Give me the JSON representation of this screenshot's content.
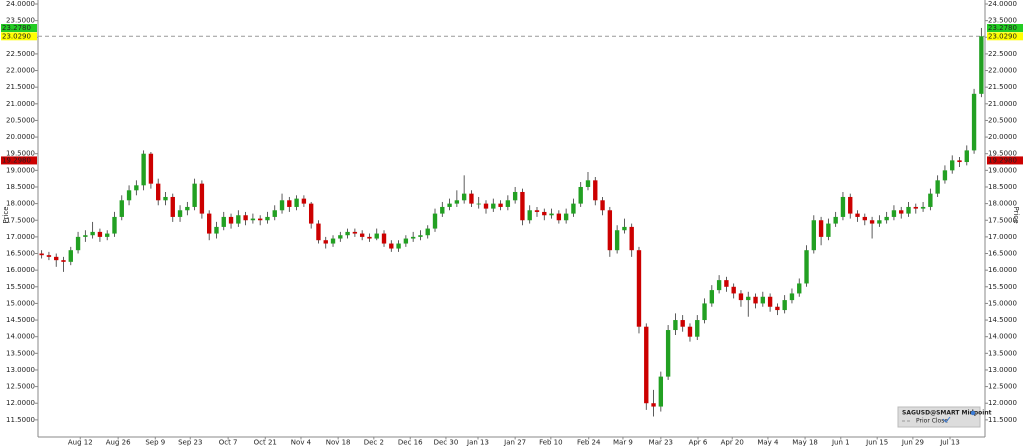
{
  "chart_data": {
    "type": "candlestick",
    "y_label": "Price",
    "name": "SAGUSD@SMART Midpoint",
    "up_color": "#22a022",
    "down_color": "#cc0000",
    "prior_close": {
      "name": "Prior Close",
      "value": 23.029,
      "color": "#999999"
    },
    "price_labels": [
      {
        "value": 23.278,
        "label": "23.2780",
        "color": "#22cc22"
      },
      {
        "value": 23.029,
        "label": "23.0290",
        "color": "#ffff00"
      },
      {
        "value": 19.298,
        "label": "19.2980",
        "color": "#cc0000"
      }
    ],
    "xlim": [
      0,
      130
    ],
    "xticks": [
      {
        "value": 5.8,
        "label": "Aug 12"
      },
      {
        "value": 11.0,
        "label": "Aug 26"
      },
      {
        "value": 16.1,
        "label": "Sep 9"
      },
      {
        "value": 20.9,
        "label": "Sep 23"
      },
      {
        "value": 26.1,
        "label": "Oct 7"
      },
      {
        "value": 31.2,
        "label": "Oct 21"
      },
      {
        "value": 36.1,
        "label": "Nov 4"
      },
      {
        "value": 41.2,
        "label": "Nov 18"
      },
      {
        "value": 46.1,
        "label": "Dec 2"
      },
      {
        "value": 51.1,
        "label": "Dec 16"
      },
      {
        "value": 56.0,
        "label": "Dec 30"
      },
      {
        "value": 60.4,
        "label": "Jan 13"
      },
      {
        "value": 65.5,
        "label": "Jan 27"
      },
      {
        "value": 70.4,
        "label": "Feb 10"
      },
      {
        "value": 75.6,
        "label": "Feb 24"
      },
      {
        "value": 80.3,
        "label": "Mar 9"
      },
      {
        "value": 85.5,
        "label": "Mar 23"
      },
      {
        "value": 90.6,
        "label": "Apr 6"
      },
      {
        "value": 95.3,
        "label": "Apr 20"
      },
      {
        "value": 100.2,
        "label": "May 4"
      },
      {
        "value": 105.3,
        "label": "May 18"
      },
      {
        "value": 110.2,
        "label": "Jun 1"
      },
      {
        "value": 115.2,
        "label": "Jun 15"
      },
      {
        "value": 120.1,
        "label": "Jun 29"
      },
      {
        "value": 125.2,
        "label": "Jul 13"
      }
    ],
    "ylim": [
      11.0,
      24.0
    ],
    "yticks": [
      {
        "value": 11.5,
        "label": "11.5000"
      },
      {
        "value": 12,
        "label": "12.0000"
      },
      {
        "value": 12.5,
        "label": "12.5000"
      },
      {
        "value": 13,
        "label": "13.0000"
      },
      {
        "value": 13.5,
        "label": "13.5000"
      },
      {
        "value": 14,
        "label": "14.0000"
      },
      {
        "value": 14.5,
        "label": "14.5000"
      },
      {
        "value": 15,
        "label": "15.0000"
      },
      {
        "value": 15.5,
        "label": "15.5000"
      },
      {
        "value": 16,
        "label": "16.0000"
      },
      {
        "value": 16.5,
        "label": "16.5000"
      },
      {
        "value": 17,
        "label": "17.0000"
      },
      {
        "value": 17.5,
        "label": "17.5000"
      },
      {
        "value": 18,
        "label": "18.0000"
      },
      {
        "value": 18.5,
        "label": "18.5000"
      },
      {
        "value": 19,
        "label": "19.0000"
      },
      {
        "value": 19.5,
        "label": "19.5000"
      },
      {
        "value": 20,
        "label": "20.0000"
      },
      {
        "value": 20.5,
        "label": "20.5000"
      },
      {
        "value": 21,
        "label": "21.0000"
      },
      {
        "value": 21.5,
        "label": "21.5000"
      },
      {
        "value": 22,
        "label": "22.0000"
      },
      {
        "value": 22.5,
        "label": "22.5000"
      },
      {
        "value": 23,
        "label": "23.0000"
      },
      {
        "value": 23.5,
        "label": "23.5000"
      },
      {
        "value": 24,
        "label": "24.0000"
      }
    ],
    "candles": [
      [
        16.5,
        16.6,
        16.35,
        16.45
      ],
      [
        16.45,
        16.55,
        16.3,
        16.4
      ],
      [
        16.4,
        16.5,
        16.1,
        16.3
      ],
      [
        16.3,
        16.4,
        15.95,
        16.25
      ],
      [
        16.25,
        16.7,
        16.15,
        16.6
      ],
      [
        16.6,
        17.15,
        16.5,
        17.0
      ],
      [
        17.0,
        17.2,
        16.85,
        17.05
      ],
      [
        17.05,
        17.45,
        16.95,
        17.15
      ],
      [
        17.15,
        17.25,
        16.85,
        17.0
      ],
      [
        17.0,
        17.2,
        16.9,
        17.1
      ],
      [
        17.1,
        17.75,
        17.0,
        17.6
      ],
      [
        17.6,
        18.25,
        17.5,
        18.1
      ],
      [
        18.1,
        18.55,
        17.95,
        18.4
      ],
      [
        18.4,
        18.7,
        18.25,
        18.55
      ],
      [
        18.55,
        19.6,
        18.4,
        19.5
      ],
      [
        19.5,
        19.55,
        18.45,
        18.6
      ],
      [
        18.6,
        18.75,
        17.95,
        18.1
      ],
      [
        18.1,
        18.35,
        17.95,
        18.2
      ],
      [
        18.2,
        18.3,
        17.45,
        17.6
      ],
      [
        17.6,
        17.95,
        17.45,
        17.8
      ],
      [
        17.8,
        18.05,
        17.65,
        17.9
      ],
      [
        17.9,
        18.75,
        17.8,
        18.6
      ],
      [
        18.6,
        18.7,
        17.55,
        17.7
      ],
      [
        17.7,
        17.8,
        16.9,
        17.1
      ],
      [
        17.1,
        17.45,
        16.95,
        17.3
      ],
      [
        17.3,
        17.75,
        17.2,
        17.6
      ],
      [
        17.6,
        17.7,
        17.25,
        17.4
      ],
      [
        17.4,
        17.8,
        17.3,
        17.65
      ],
      [
        17.65,
        17.75,
        17.35,
        17.5
      ],
      [
        17.5,
        17.7,
        17.4,
        17.55
      ],
      [
        17.55,
        17.65,
        17.35,
        17.5
      ],
      [
        17.5,
        17.75,
        17.4,
        17.6
      ],
      [
        17.6,
        17.95,
        17.5,
        17.8
      ],
      [
        17.8,
        18.3,
        17.7,
        18.1
      ],
      [
        18.1,
        18.2,
        17.75,
        17.9
      ],
      [
        17.9,
        18.25,
        17.8,
        18.15
      ],
      [
        18.15,
        18.25,
        17.9,
        18.0
      ],
      [
        18.0,
        18.05,
        17.25,
        17.4
      ],
      [
        17.4,
        17.5,
        16.8,
        16.9
      ],
      [
        16.9,
        17.0,
        16.65,
        16.8
      ],
      [
        16.8,
        17.05,
        16.7,
        16.95
      ],
      [
        16.95,
        17.15,
        16.85,
        17.05
      ],
      [
        17.05,
        17.25,
        16.95,
        17.15
      ],
      [
        17.15,
        17.25,
        17.0,
        17.1
      ],
      [
        17.1,
        17.2,
        16.9,
        17.0
      ],
      [
        17.0,
        17.1,
        16.85,
        16.95
      ],
      [
        16.95,
        17.25,
        16.9,
        17.1
      ],
      [
        17.1,
        17.2,
        16.7,
        16.8
      ],
      [
        16.8,
        16.9,
        16.55,
        16.65
      ],
      [
        16.65,
        16.9,
        16.55,
        16.8
      ],
      [
        16.8,
        17.05,
        16.7,
        16.95
      ],
      [
        16.95,
        17.15,
        16.85,
        17.0
      ],
      [
        17.0,
        17.2,
        16.9,
        17.05
      ],
      [
        17.05,
        17.35,
        16.95,
        17.25
      ],
      [
        17.25,
        17.85,
        17.15,
        17.7
      ],
      [
        17.7,
        18.05,
        17.6,
        17.9
      ],
      [
        17.9,
        18.15,
        17.8,
        18.0
      ],
      [
        18.0,
        18.4,
        17.9,
        18.1
      ],
      [
        18.1,
        18.85,
        18.0,
        18.3
      ],
      [
        18.3,
        18.4,
        17.9,
        18.0
      ],
      [
        18.0,
        18.2,
        17.85,
        18.0
      ],
      [
        18.0,
        18.1,
        17.7,
        17.85
      ],
      [
        17.85,
        18.15,
        17.75,
        18.0
      ],
      [
        18.0,
        18.1,
        17.8,
        17.9
      ],
      [
        17.9,
        18.25,
        17.8,
        18.1
      ],
      [
        18.1,
        18.5,
        18.0,
        18.35
      ],
      [
        18.35,
        18.45,
        17.35,
        17.5
      ],
      [
        17.5,
        17.95,
        17.4,
        17.8
      ],
      [
        17.8,
        17.9,
        17.6,
        17.75
      ],
      [
        17.75,
        17.85,
        17.5,
        17.65
      ],
      [
        17.65,
        17.85,
        17.55,
        17.7
      ],
      [
        17.7,
        17.8,
        17.4,
        17.5
      ],
      [
        17.5,
        17.85,
        17.4,
        17.7
      ],
      [
        17.7,
        18.15,
        17.6,
        18.0
      ],
      [
        18.0,
        18.65,
        17.9,
        18.5
      ],
      [
        18.5,
        18.95,
        18.4,
        18.7
      ],
      [
        18.7,
        18.8,
        17.95,
        18.1
      ],
      [
        18.1,
        18.2,
        17.65,
        17.8
      ],
      [
        17.8,
        17.9,
        16.4,
        16.6
      ],
      [
        16.6,
        17.35,
        16.5,
        17.2
      ],
      [
        17.2,
        17.55,
        17.1,
        17.3
      ],
      [
        17.3,
        17.4,
        16.4,
        16.6
      ],
      [
        16.6,
        16.7,
        14.1,
        14.3
      ],
      [
        14.3,
        14.4,
        11.8,
        12.0
      ],
      [
        12.0,
        12.4,
        11.6,
        11.9
      ],
      [
        11.9,
        12.95,
        11.75,
        12.8
      ],
      [
        12.8,
        14.35,
        12.7,
        14.2
      ],
      [
        14.2,
        14.7,
        14.05,
        14.5
      ],
      [
        14.5,
        14.65,
        14.15,
        14.3
      ],
      [
        14.3,
        14.4,
        13.85,
        14.0
      ],
      [
        14.0,
        14.65,
        13.9,
        14.5
      ],
      [
        14.5,
        15.15,
        14.4,
        15.0
      ],
      [
        15.0,
        15.55,
        14.9,
        15.4
      ],
      [
        15.4,
        15.85,
        15.3,
        15.7
      ],
      [
        15.7,
        15.8,
        15.35,
        15.5
      ],
      [
        15.5,
        15.6,
        15.15,
        15.3
      ],
      [
        15.3,
        15.4,
        14.9,
        15.1
      ],
      [
        15.1,
        15.35,
        14.6,
        15.2
      ],
      [
        15.2,
        15.3,
        14.85,
        15.0
      ],
      [
        15.0,
        15.35,
        14.9,
        15.2
      ],
      [
        15.2,
        15.3,
        14.75,
        14.9
      ],
      [
        14.9,
        15.0,
        14.65,
        14.8
      ],
      [
        14.8,
        15.25,
        14.7,
        15.1
      ],
      [
        15.1,
        15.45,
        15.0,
        15.3
      ],
      [
        15.3,
        15.75,
        15.2,
        15.6
      ],
      [
        15.6,
        16.75,
        15.5,
        16.6
      ],
      [
        16.6,
        17.65,
        16.5,
        17.5
      ],
      [
        17.5,
        17.6,
        16.75,
        17.0
      ],
      [
        17.0,
        17.55,
        16.9,
        17.4
      ],
      [
        17.4,
        17.75,
        17.3,
        17.6
      ],
      [
        17.6,
        18.35,
        17.5,
        18.2
      ],
      [
        18.2,
        18.3,
        17.55,
        17.7
      ],
      [
        17.7,
        17.8,
        17.45,
        17.6
      ],
      [
        17.6,
        17.7,
        17.35,
        17.5
      ],
      [
        17.5,
        17.6,
        16.95,
        17.4
      ],
      [
        17.4,
        17.65,
        17.3,
        17.5
      ],
      [
        17.5,
        17.75,
        17.4,
        17.6
      ],
      [
        17.6,
        17.95,
        17.5,
        17.8
      ],
      [
        17.8,
        17.9,
        17.55,
        17.7
      ],
      [
        17.7,
        18.05,
        17.6,
        17.9
      ],
      [
        17.9,
        18.0,
        17.7,
        17.85
      ],
      [
        17.85,
        18.05,
        17.75,
        17.9
      ],
      [
        17.9,
        18.45,
        17.8,
        18.3
      ],
      [
        18.3,
        18.85,
        18.2,
        18.7
      ],
      [
        18.7,
        19.15,
        18.6,
        19.0
      ],
      [
        19.0,
        19.45,
        18.9,
        19.3
      ],
      [
        19.3,
        19.4,
        19.1,
        19.25
      ],
      [
        19.25,
        19.75,
        19.15,
        19.6
      ],
      [
        19.6,
        21.45,
        19.5,
        21.3
      ],
      [
        21.3,
        23.28,
        21.2,
        23.03
      ]
    ]
  }
}
